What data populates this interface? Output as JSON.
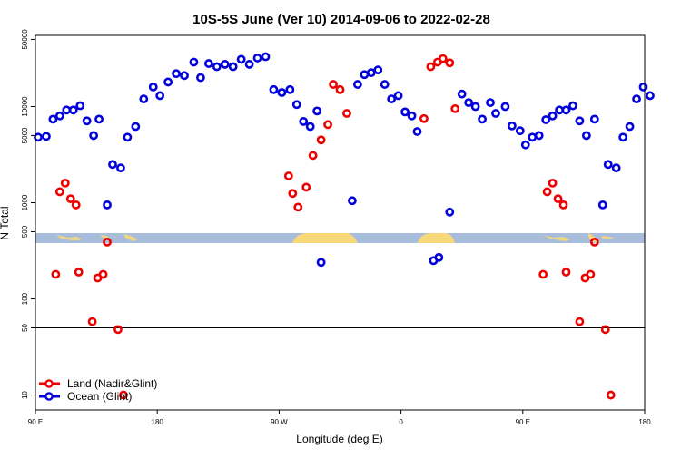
{
  "chart_data": {
    "type": "scatter",
    "title": "10S-5S June (Ver 10)   2014-09-06 to 2022-02-28",
    "xlabel": "Longitude (deg E)",
    "ylabel": "N Total",
    "yscale": "log",
    "xlim": [
      90,
      540
    ],
    "ylim": [
      7,
      55000
    ],
    "x_ticks": [
      {
        "value": 90,
        "label": "90 E"
      },
      {
        "value": 180,
        "label": "180"
      },
      {
        "value": 270,
        "label": "90 W"
      },
      {
        "value": 360,
        "label": "0"
      },
      {
        "value": 450,
        "label": "90 E"
      },
      {
        "value": 540,
        "label": "180"
      }
    ],
    "y_ticks": [
      {
        "value": 10,
        "label": "10"
      },
      {
        "value": 50,
        "label": "50"
      },
      {
        "value": 100,
        "label": "100"
      },
      {
        "value": 500,
        "label": "500"
      },
      {
        "value": 1000,
        "label": "1000"
      },
      {
        "value": 5000,
        "label": "5000"
      },
      {
        "value": 10000,
        "label": "10000"
      },
      {
        "value": 50000,
        "label": "50000"
      }
    ],
    "reference_line": 50,
    "legend": {
      "position": "bottom-left"
    },
    "series": [
      {
        "name": "Land (Nadir&Glint)",
        "color": "#ee0000",
        "points": [
          [
            105,
            180
          ],
          [
            108,
            1300
          ],
          [
            112,
            1600
          ],
          [
            116,
            1100
          ],
          [
            120,
            950
          ],
          [
            122,
            190
          ],
          [
            132,
            58
          ],
          [
            136,
            165
          ],
          [
            140,
            180
          ],
          [
            143,
            390
          ],
          [
            151,
            48
          ],
          [
            155,
            10
          ],
          [
            277,
            1900
          ],
          [
            280,
            1250
          ],
          [
            284,
            900
          ],
          [
            290,
            1450
          ],
          [
            295,
            3100
          ],
          [
            301,
            4500
          ],
          [
            306,
            6500
          ],
          [
            310,
            17000
          ],
          [
            315,
            15000
          ],
          [
            320,
            8500
          ],
          [
            377,
            7500
          ],
          [
            382,
            26000
          ],
          [
            387,
            29000
          ],
          [
            391,
            31500
          ],
          [
            396,
            28500
          ],
          [
            400,
            9500
          ],
          [
            465,
            180
          ],
          [
            468,
            1300
          ],
          [
            472,
            1600
          ],
          [
            476,
            1100
          ],
          [
            480,
            950
          ],
          [
            482,
            190
          ],
          [
            492,
            58
          ],
          [
            496,
            165
          ],
          [
            500,
            180
          ],
          [
            503,
            390
          ],
          [
            511,
            48
          ],
          [
            515,
            10
          ]
        ]
      },
      {
        "name": "Ocean (Glint)",
        "color": "#0000dd",
        "points": [
          [
            92,
            4800
          ],
          [
            98,
            4900
          ],
          [
            103,
            7400
          ],
          [
            108,
            8000
          ],
          [
            113,
            9200
          ],
          [
            118,
            9200
          ],
          [
            123,
            10200
          ],
          [
            128,
            7100
          ],
          [
            133,
            5000
          ],
          [
            137,
            7400
          ],
          [
            143,
            950
          ],
          [
            147,
            2500
          ],
          [
            153,
            2300
          ],
          [
            158,
            4800
          ],
          [
            164,
            6200
          ],
          [
            170,
            12000
          ],
          [
            177,
            16000
          ],
          [
            182,
            13000
          ],
          [
            188,
            18000
          ],
          [
            194,
            22000
          ],
          [
            200,
            21000
          ],
          [
            207,
            29000
          ],
          [
            212,
            20000
          ],
          [
            218,
            28000
          ],
          [
            224,
            26000
          ],
          [
            230,
            27500
          ],
          [
            236,
            26000
          ],
          [
            242,
            31000
          ],
          [
            248,
            27500
          ],
          [
            254,
            32000
          ],
          [
            260,
            33000
          ],
          [
            266,
            15000
          ],
          [
            272,
            14000
          ],
          [
            278,
            15000
          ],
          [
            283,
            10500
          ],
          [
            288,
            7000
          ],
          [
            293,
            6200
          ],
          [
            298,
            9000
          ],
          [
            301,
            240
          ],
          [
            324,
            1050
          ],
          [
            328,
            17000
          ],
          [
            333,
            21500
          ],
          [
            338,
            22500
          ],
          [
            343,
            24000
          ],
          [
            348,
            17000
          ],
          [
            353,
            12000
          ],
          [
            358,
            13000
          ],
          [
            363,
            8800
          ],
          [
            368,
            8000
          ],
          [
            372,
            5500
          ],
          [
            384,
            250
          ],
          [
            388,
            270
          ],
          [
            396,
            800
          ],
          [
            405,
            13500
          ],
          [
            410,
            11000
          ],
          [
            415,
            10000
          ],
          [
            420,
            7400
          ],
          [
            426,
            11000
          ],
          [
            430,
            8500
          ],
          [
            437,
            10000
          ],
          [
            442,
            6300
          ],
          [
            448,
            5600
          ],
          [
            452,
            4000
          ],
          [
            457,
            4800
          ],
          [
            462,
            5000
          ],
          [
            467,
            7300
          ],
          [
            472,
            8000
          ],
          [
            477,
            9200
          ],
          [
            482,
            9200
          ],
          [
            487,
            10200
          ],
          [
            492,
            7100
          ],
          [
            497,
            5000
          ],
          [
            503,
            7400
          ],
          [
            509,
            950
          ],
          [
            513,
            2500
          ],
          [
            519,
            2300
          ],
          [
            524,
            4800
          ],
          [
            529,
            6200
          ],
          [
            534,
            12000
          ],
          [
            539,
            16000
          ],
          [
            544,
            13000
          ]
        ]
      }
    ]
  }
}
